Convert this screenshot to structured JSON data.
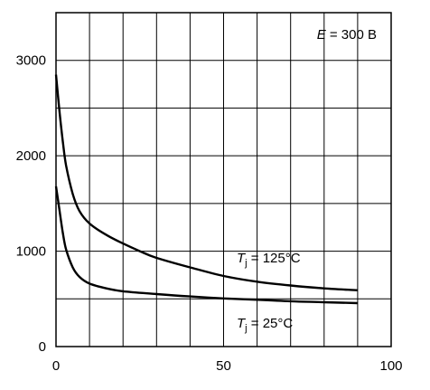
{
  "chart_data": {
    "type": "line",
    "title": "",
    "xlabel": "",
    "ylabel": "",
    "xlim": [
      0,
      100
    ],
    "ylim": [
      0,
      3500
    ],
    "x_ticks": [
      0,
      50,
      100
    ],
    "x_tick_labels": [
      "0",
      "50",
      "100"
    ],
    "y_ticks": [
      0,
      1000,
      2000,
      3000
    ],
    "y_tick_labels": [
      "0",
      "1000",
      "2000",
      "3000"
    ],
    "x_grid_step": 10,
    "y_grid_step": 500,
    "grid": true,
    "series": [
      {
        "label_var": "T",
        "label_sub": "j",
        "label_rest": " = 125°C",
        "x": [
          0,
          1,
          2,
          3,
          5,
          7,
          10,
          15,
          20,
          25,
          30,
          40,
          50,
          60,
          70,
          80,
          90
        ],
        "y": [
          2850,
          2480,
          2160,
          1900,
          1600,
          1420,
          1290,
          1170,
          1080,
          1000,
          930,
          830,
          740,
          680,
          640,
          610,
          590
        ]
      },
      {
        "label_var": "T",
        "label_sub": "j",
        "label_rest": " = 25°C",
        "x": [
          0,
          1,
          2,
          3,
          5,
          7,
          10,
          15,
          20,
          30,
          40,
          50,
          60,
          70,
          80,
          90
        ],
        "y": [
          1680,
          1440,
          1200,
          1020,
          830,
          730,
          660,
          610,
          580,
          550,
          525,
          505,
          490,
          475,
          465,
          455
        ]
      }
    ],
    "annotation": {
      "var": "E",
      "rest": " = 300 В"
    }
  }
}
